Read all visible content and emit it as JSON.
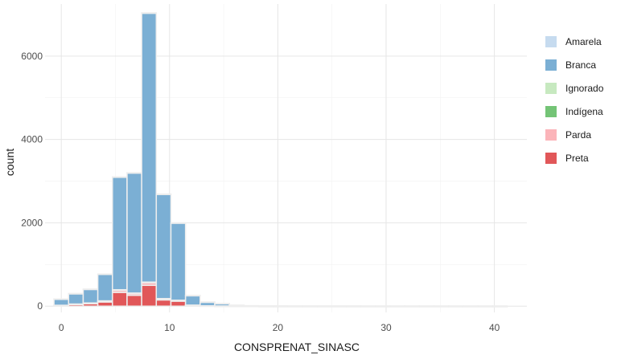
{
  "chart_data": {
    "type": "bar",
    "subtype": "stacked-histogram",
    "xlabel": "CONSPRENAT_SINASC",
    "ylabel": "count",
    "xlim": [
      -1.5,
      43
    ],
    "ylim": [
      -150,
      7250
    ],
    "x_ticks": [
      0,
      10,
      20,
      30,
      40
    ],
    "y_ticks": [
      0,
      2000,
      4000,
      6000
    ],
    "grid": true,
    "legend_position": "right",
    "bin_centers": [
      0,
      1.35,
      2.7,
      4.05,
      5.4,
      6.75,
      8.1,
      9.45,
      10.8,
      12.15,
      13.5,
      14.85,
      16.2,
      17.55,
      18.9,
      20.25,
      21.6,
      22.95,
      24.3,
      25.65,
      27,
      28.35,
      29.7,
      31.05,
      32.4,
      33.75,
      35.1,
      36.45,
      37.8,
      39.15,
      40.5
    ],
    "series": [
      {
        "name": "Amarela",
        "color": "#c6dbef",
        "values": [
          2,
          2,
          3,
          4,
          8,
          8,
          12,
          8,
          6,
          3,
          2,
          1,
          1,
          0,
          0,
          0,
          0,
          0,
          0,
          0,
          0,
          0,
          0,
          0,
          0,
          0,
          0,
          0,
          0,
          0,
          0
        ]
      },
      {
        "name": "Branca",
        "color": "#7bafd4",
        "values": [
          150,
          250,
          330,
          640,
          2700,
          2880,
          6450,
          2500,
          1850,
          230,
          90,
          60,
          20,
          10,
          8,
          6,
          5,
          4,
          3,
          3,
          3,
          2,
          2,
          2,
          2,
          2,
          2,
          2,
          2,
          2,
          2
        ]
      },
      {
        "name": "Ignorado",
        "color": "#c7e9c0",
        "values": [
          1,
          1,
          1,
          2,
          3,
          3,
          5,
          2,
          2,
          1,
          0,
          0,
          0,
          0,
          0,
          0,
          0,
          0,
          0,
          0,
          0,
          0,
          0,
          0,
          0,
          0,
          0,
          0,
          0,
          0,
          0
        ]
      },
      {
        "name": "Indígena",
        "color": "#74c476",
        "values": [
          1,
          1,
          1,
          1,
          2,
          2,
          3,
          1,
          1,
          0,
          0,
          0,
          0,
          0,
          0,
          0,
          0,
          0,
          0,
          0,
          0,
          0,
          0,
          0,
          0,
          0,
          0,
          0,
          0,
          0,
          0
        ]
      },
      {
        "name": "Parda",
        "color": "#fbb4b9",
        "values": [
          5,
          10,
          15,
          25,
          60,
          50,
          70,
          30,
          20,
          5,
          2,
          1,
          0,
          0,
          0,
          0,
          0,
          0,
          0,
          0,
          0,
          0,
          0,
          0,
          0,
          0,
          0,
          0,
          0,
          0,
          0
        ]
      },
      {
        "name": "Preta",
        "color": "#e15759",
        "values": [
          15,
          40,
          60,
          100,
          330,
          260,
          500,
          150,
          120,
          20,
          8,
          5,
          2,
          1,
          0,
          0,
          0,
          0,
          0,
          0,
          0,
          0,
          0,
          0,
          0,
          0,
          0,
          0,
          0,
          0,
          0
        ]
      }
    ]
  }
}
